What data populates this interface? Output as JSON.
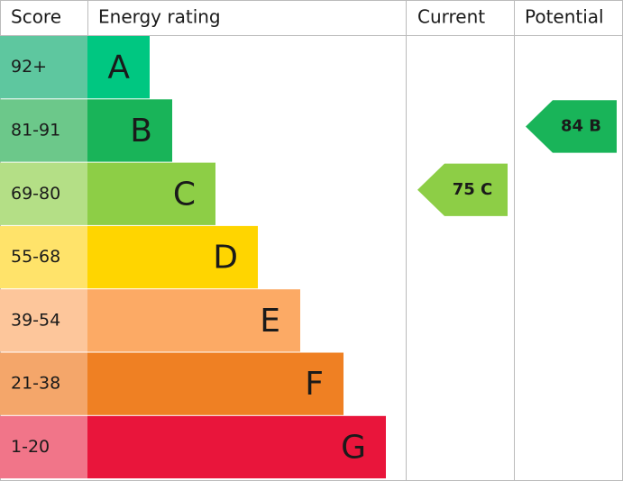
{
  "header": {
    "score": "Score",
    "rating": "Energy rating",
    "current": "Current",
    "potential": "Potential"
  },
  "bands": [
    {
      "score": "92+",
      "letter": "A",
      "color": "#00c781",
      "score_color": "#5ec79f"
    },
    {
      "score": "81-91",
      "letter": "B",
      "color": "#19b459",
      "score_color": "#6cc88a"
    },
    {
      "score": "69-80",
      "letter": "C",
      "color": "#8dce46",
      "score_color": "#b4df86"
    },
    {
      "score": "55-68",
      "letter": "D",
      "color": "#ffd500",
      "score_color": "#ffe36a"
    },
    {
      "score": "39-54",
      "letter": "E",
      "color": "#fcaa65",
      "score_color": "#fdc69b"
    },
    {
      "score": "21-38",
      "letter": "F",
      "color": "#ef8023",
      "score_color": "#f4a66a"
    },
    {
      "score": "1-20",
      "letter": "G",
      "color": "#e9153b",
      "score_color": "#f17589"
    }
  ],
  "current": {
    "value": 75,
    "label": "75 C",
    "color": "#8dce46"
  },
  "potential": {
    "value": 84,
    "label": "84 B",
    "color": "#19b459"
  }
}
